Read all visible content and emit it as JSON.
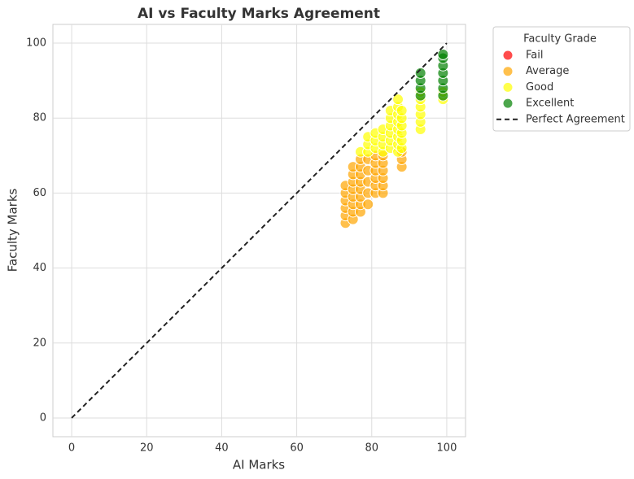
{
  "chart_data": {
    "type": "scatter",
    "title": "AI vs Faculty Marks Agreement",
    "x_label": "AI Marks",
    "y_label": "Faculty Marks",
    "xlim": [
      -5,
      105
    ],
    "ylim": [
      -5,
      105
    ],
    "xticks": [
      0,
      20,
      40,
      60,
      80,
      100
    ],
    "yticks": [
      0,
      20,
      40,
      60,
      80,
      100
    ],
    "grid": true,
    "legend_title": "Faculty Grade",
    "legend_position": "outside-upper-right",
    "series": [
      {
        "name": "Fail",
        "color": "red",
        "x": [],
        "values": []
      },
      {
        "name": "Average",
        "color": "orange",
        "x": [
          73,
          73,
          73,
          73,
          73,
          73,
          75,
          75,
          75,
          75,
          75,
          75,
          75,
          75,
          77,
          77,
          77,
          77,
          77,
          77,
          77,
          77,
          79,
          79,
          79,
          79,
          79,
          81,
          81,
          81,
          81,
          81,
          81,
          83,
          83,
          83,
          83,
          83,
          83,
          88,
          88,
          88
        ],
        "values": [
          52,
          54,
          56,
          58,
          60,
          62,
          53,
          55,
          57,
          59,
          61,
          63,
          65,
          67,
          55,
          57,
          59,
          61,
          63,
          65,
          67,
          69,
          57,
          60,
          63,
          66,
          69,
          60,
          62,
          64,
          66,
          68,
          70,
          60,
          62,
          64,
          66,
          68,
          70,
          67,
          69,
          71
        ]
      },
      {
        "name": "Good",
        "color": "yellow",
        "x": [
          77,
          79,
          79,
          79,
          81,
          81,
          81,
          83,
          83,
          83,
          83,
          85,
          85,
          85,
          85,
          85,
          85,
          87,
          87,
          87,
          87,
          87,
          87,
          87,
          87,
          88,
          88,
          88,
          88,
          88,
          88,
          93,
          93,
          93,
          93,
          93,
          93,
          99,
          99
        ],
        "values": [
          71,
          71,
          73,
          75,
          72,
          74,
          76,
          71,
          73,
          75,
          77,
          72,
          74,
          76,
          78,
          80,
          82,
          71,
          73,
          75,
          77,
          79,
          81,
          83,
          85,
          72,
          74,
          76,
          78,
          80,
          82,
          77,
          79,
          81,
          83,
          85,
          87,
          85,
          87
        ]
      },
      {
        "name": "Excellent",
        "color": "green",
        "x": [
          93,
          93,
          93,
          93,
          99,
          99,
          99,
          99,
          99,
          99,
          99
        ],
        "values": [
          86,
          88,
          90,
          92,
          86,
          88,
          90,
          92,
          94,
          96,
          97
        ]
      }
    ],
    "reference_line": {
      "name": "Perfect Agreement",
      "color": "#222",
      "x": [
        0,
        100
      ],
      "y": [
        0,
        100
      ]
    }
  }
}
